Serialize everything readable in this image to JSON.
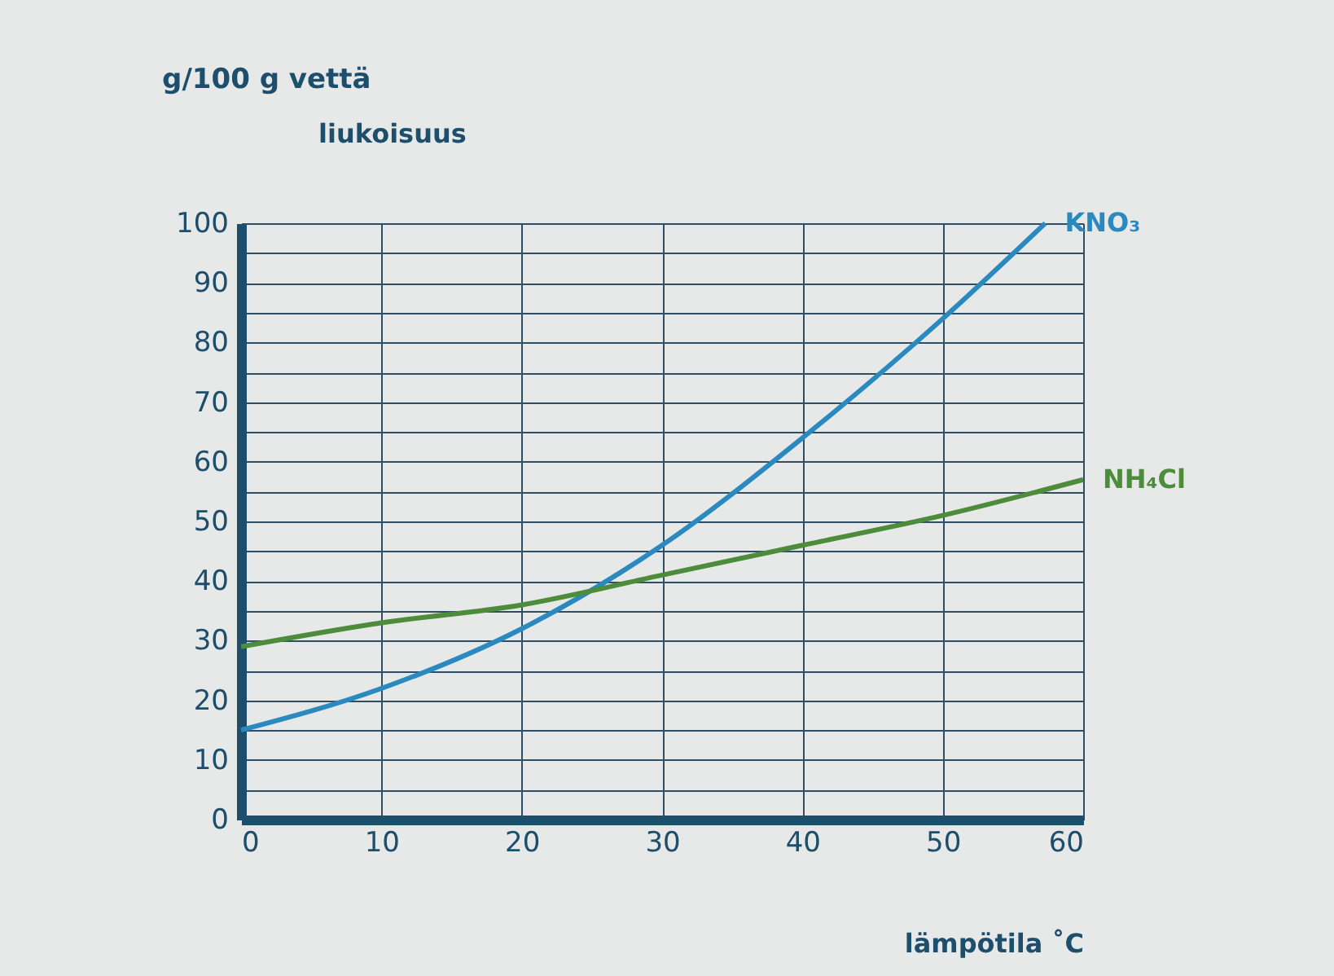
{
  "chart_data": {
    "type": "line",
    "title": "g/100 g vettä",
    "ylabel": "liukoisuus",
    "xlabel": "lämpötila ˚C",
    "x": [
      0,
      10,
      20,
      30,
      40,
      50,
      57.3,
      60
    ],
    "series": [
      {
        "name": "KNO₃",
        "color": "#2a8ac0",
        "values": [
          15,
          22,
          32,
          46,
          64,
          84,
          100,
          null
        ]
      },
      {
        "name": "NH₄Cl",
        "color": "#4c8c3a",
        "values": [
          29,
          33,
          36,
          41,
          46,
          51,
          null,
          57
        ]
      }
    ],
    "xlim": [
      0,
      60
    ],
    "xticks": [
      0,
      10,
      20,
      30,
      40,
      50,
      60
    ],
    "ylim": [
      0,
      100
    ],
    "yticks": [
      0,
      {
        "value": 5,
        "label": null
      },
      10,
      {
        "value": 15,
        "label": null
      },
      20,
      {
        "value": 25,
        "label": null
      },
      30,
      {
        "value": 35,
        "label": null
      },
      40,
      {
        "value": 45,
        "label": null
      },
      50,
      {
        "value": 55,
        "label": null
      },
      60,
      {
        "value": 65,
        "label": null
      },
      70,
      {
        "value": 75,
        "label": null
      },
      80,
      {
        "value": 85,
        "label": null
      },
      90,
      {
        "value": 95,
        "label": null
      },
      100
    ],
    "grid": true
  }
}
